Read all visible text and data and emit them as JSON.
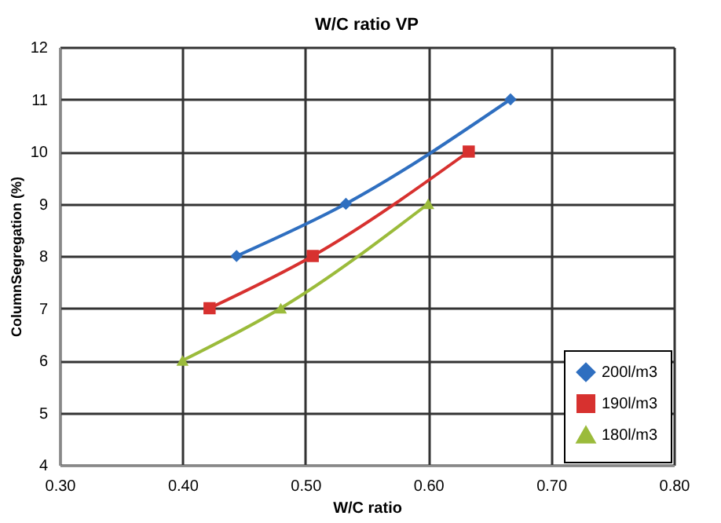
{
  "chart_data": {
    "type": "line",
    "title": "W/C ratio VP",
    "xlabel": "W/C ratio",
    "ylabel": "ColumnSegregation (%)",
    "series": [
      {
        "name": "200l/m3",
        "color": "#2f6fc0",
        "marker": "diamond",
        "x": [
          0.444,
          0.533,
          0.667
        ],
        "values": [
          8,
          9,
          11
        ]
      },
      {
        "name": "190l/m3",
        "color": "#d7312f",
        "marker": "square",
        "x": [
          0.422,
          0.506,
          0.633
        ],
        "values": [
          7,
          8,
          10
        ]
      },
      {
        "name": "180l/m3",
        "color": "#9bbb3b",
        "marker": "triangle",
        "x": [
          0.4,
          0.48,
          0.6
        ],
        "values": [
          6,
          7,
          9
        ]
      }
    ],
    "xlim": [
      0.3,
      0.8
    ],
    "xticks": [
      {
        "value": 0.3,
        "label": "0.30"
      },
      {
        "value": 0.4,
        "label": "0.40"
      },
      {
        "value": 0.5,
        "label": "0.50"
      },
      {
        "value": 0.6,
        "label": "0.60"
      },
      {
        "value": 0.7,
        "label": "0.70"
      },
      {
        "value": 0.8,
        "label": "0.80"
      }
    ],
    "ylim": [
      4,
      12
    ],
    "yticks": [
      4,
      5,
      6,
      7,
      8,
      9,
      10,
      11,
      12
    ],
    "grid": true,
    "legend": "bottom right",
    "line_style": "solid"
  }
}
